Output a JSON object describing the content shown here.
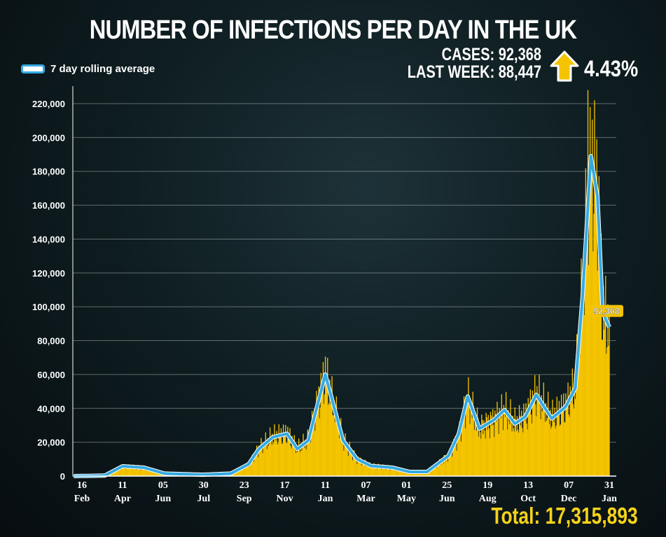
{
  "header": {
    "title": "NUMBER OF INFECTIONS PER DAY IN THE UK",
    "cases_line": "CASES: 92,368",
    "last_week_line": "LAST WEEK: 88,447",
    "change_pct": "4.43%",
    "change_icon": "arrow-up-icon",
    "total": "Total: 17,315,893"
  },
  "colors": {
    "bars": "#f5c400",
    "line": "#35a9e0",
    "accent": "#f5d21a"
  },
  "chart_data": {
    "type": "bar",
    "title": "NUMBER OF INFECTIONS PER DAY IN THE UK",
    "xlabel": "",
    "ylabel": "",
    "ylim": [
      0,
      230000
    ],
    "grid": true,
    "legend": {
      "placement": "top-left",
      "entries": [
        "7 day rolling average"
      ]
    },
    "yticks": [
      0,
      20000,
      40000,
      60000,
      80000,
      100000,
      120000,
      140000,
      160000,
      180000,
      200000,
      220000
    ],
    "ytick_labels": [
      "0",
      "20,000",
      "40,000",
      "60,000",
      "80,000",
      "100,000",
      "120,000",
      "140,000",
      "160,000",
      "180,000",
      "200,000",
      "220,000"
    ],
    "xticks": [
      {
        "date": "2020-02-16",
        "day": "16",
        "month": "Feb"
      },
      {
        "date": "2020-04-11",
        "day": "11",
        "month": "Apr"
      },
      {
        "date": "2020-06-05",
        "day": "05",
        "month": "Jun"
      },
      {
        "date": "2020-07-30",
        "day": "30",
        "month": "Jul"
      },
      {
        "date": "2020-09-23",
        "day": "23",
        "month": "Sep"
      },
      {
        "date": "2020-11-17",
        "day": "17",
        "month": "Nov"
      },
      {
        "date": "2021-01-11",
        "day": "11",
        "month": "Jan"
      },
      {
        "date": "2021-03-07",
        "day": "07",
        "month": "Mar"
      },
      {
        "date": "2021-05-01",
        "day": "01",
        "month": "May"
      },
      {
        "date": "2021-06-25",
        "day": "25",
        "month": "Jun"
      },
      {
        "date": "2021-08-19",
        "day": "19",
        "month": "Aug"
      },
      {
        "date": "2021-10-13",
        "day": "13",
        "month": "Oct"
      },
      {
        "date": "2021-12-07",
        "day": "07",
        "month": "Dec"
      },
      {
        "date": "2022-01-31",
        "day": "31",
        "month": "Jan"
      }
    ],
    "xlim": [
      "2020-02-05",
      "2022-02-03"
    ],
    "series": [
      {
        "name": "7 day rolling average",
        "type": "line",
        "points": [
          [
            "2020-02-05",
            0
          ],
          [
            "2020-03-18",
            300
          ],
          [
            "2020-04-11",
            5800
          ],
          [
            "2020-05-10",
            5000
          ],
          [
            "2020-06-07",
            1500
          ],
          [
            "2020-07-29",
            800
          ],
          [
            "2020-09-05",
            1500
          ],
          [
            "2020-09-29",
            7000
          ],
          [
            "2020-10-13",
            16000
          ],
          [
            "2020-11-01",
            23000
          ],
          [
            "2020-11-20",
            25000
          ],
          [
            "2020-12-04",
            16000
          ],
          [
            "2020-12-19",
            21000
          ],
          [
            "2021-01-11",
            60000
          ],
          [
            "2021-02-04",
            21000
          ],
          [
            "2021-02-23",
            10000
          ],
          [
            "2021-03-14",
            6000
          ],
          [
            "2021-04-12",
            5000
          ],
          [
            "2021-05-05",
            2500
          ],
          [
            "2021-05-29",
            2500
          ],
          [
            "2021-06-27",
            12000
          ],
          [
            "2021-07-11",
            25000
          ],
          [
            "2021-07-23",
            47000
          ],
          [
            "2021-08-08",
            28000
          ],
          [
            "2021-08-27",
            33000
          ],
          [
            "2021-09-11",
            39000
          ],
          [
            "2021-09-25",
            31000
          ],
          [
            "2021-10-09",
            35000
          ],
          [
            "2021-10-24",
            48000
          ],
          [
            "2021-11-14",
            34000
          ],
          [
            "2021-12-03",
            41000
          ],
          [
            "2021-12-16",
            52000
          ],
          [
            "2021-12-26",
            107000
          ],
          [
            "2022-01-06",
            189000
          ],
          [
            "2022-01-15",
            165000
          ],
          [
            "2022-01-22",
            97000
          ],
          [
            "2022-01-31",
            88000
          ]
        ]
      },
      {
        "name": "",
        "type": "bar",
        "note_peak": 228000
      }
    ],
    "annotation": {
      "label": "92,368",
      "date": "2022-01-31",
      "value": 92368
    }
  }
}
